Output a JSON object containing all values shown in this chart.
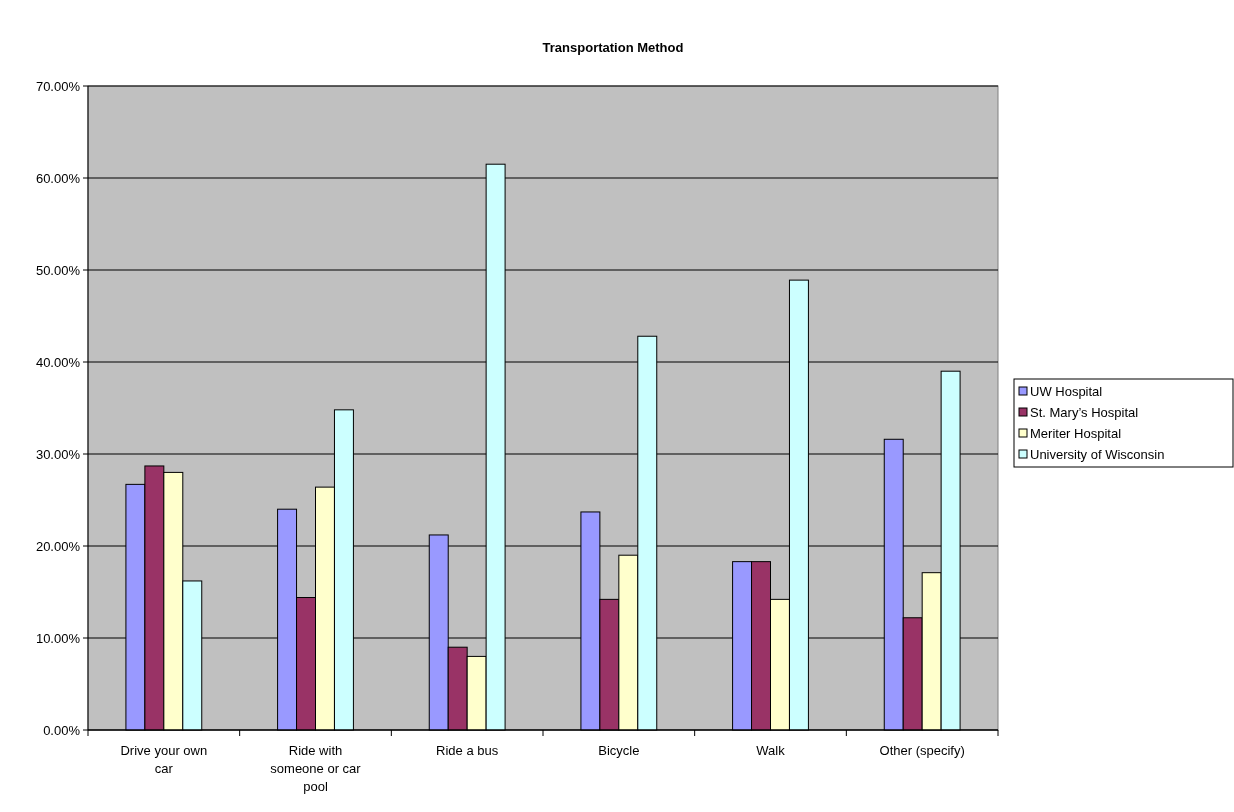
{
  "chart_data": {
    "type": "bar",
    "title": "Transportation Method",
    "categories": [
      "Drive your own car",
      "Ride with someone or car pool",
      "Ride a bus",
      "Bicycle",
      "Walk",
      "Other (specify)"
    ],
    "series": [
      {
        "name": "UW Hospital",
        "color": "#9999ff",
        "values": [
          26.7,
          24.0,
          21.2,
          23.7,
          18.3,
          31.6
        ]
      },
      {
        "name": "St. Mary’s Hospital",
        "color": "#993366",
        "values": [
          28.7,
          14.4,
          9.0,
          14.2,
          18.3,
          12.2
        ]
      },
      {
        "name": "Meriter Hospital",
        "color": "#ffffcc",
        "values": [
          28.0,
          26.4,
          8.0,
          19.0,
          14.2,
          17.1
        ]
      },
      {
        "name": "University of Wisconsin",
        "color": "#ccffff",
        "values": [
          16.2,
          34.8,
          61.5,
          42.8,
          48.9,
          39.0
        ]
      }
    ],
    "ylim": [
      0,
      70
    ],
    "yticks": [
      {
        "value": 0,
        "label": "0.00%"
      },
      {
        "value": 10,
        "label": "10.00%"
      },
      {
        "value": 20,
        "label": "20.00%"
      },
      {
        "value": 30,
        "label": "30.00%"
      },
      {
        "value": 40,
        "label": "40.00%"
      },
      {
        "value": 50,
        "label": "50.00%"
      },
      {
        "value": 60,
        "label": "60.00%"
      },
      {
        "value": 70,
        "label": "70.00%"
      }
    ],
    "grid": "y",
    "legend": "right"
  }
}
